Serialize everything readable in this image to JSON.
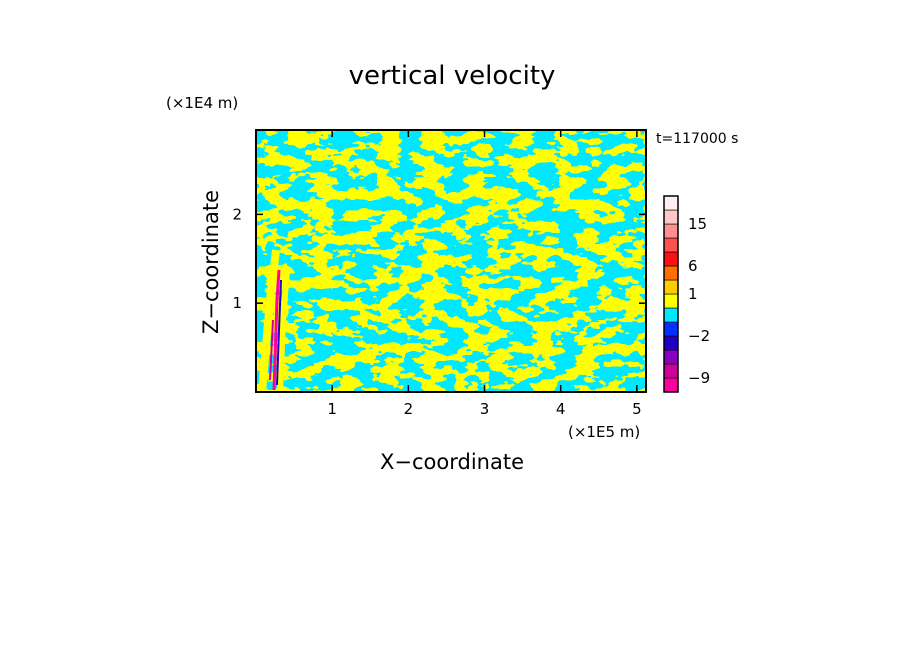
{
  "chart_data": {
    "type": "heatmap",
    "title": "vertical velocity",
    "xlabel": "X−coordinate",
    "ylabel": "Z−coordinate",
    "x_unit": "(×1E5 m)",
    "y_unit": "(×1E4 m)",
    "time_label": "t=117000 s",
    "xlim": [
      0,
      5.12
    ],
    "ylim": [
      0,
      2.95
    ],
    "x_ticks": [
      {
        "value": 1,
        "label": "1"
      },
      {
        "value": 2,
        "label": "2"
      },
      {
        "value": 3,
        "label": "3"
      },
      {
        "value": 4,
        "label": "4"
      },
      {
        "value": 5,
        "label": "5"
      }
    ],
    "y_ticks": [
      {
        "value": 1,
        "label": "1"
      },
      {
        "value": 2,
        "label": "2"
      }
    ],
    "colorbar": {
      "levels": [
        {
          "from": -12,
          "to": -9,
          "color": "#ff00a0"
        },
        {
          "from": -9,
          "to": -6,
          "color": "#d0009a"
        },
        {
          "from": -6,
          "to": -4,
          "color": "#8800c0"
        },
        {
          "from": -4,
          "to": -2,
          "color": "#2000c8"
        },
        {
          "from": -2,
          "to": -1,
          "color": "#0030ff"
        },
        {
          "from": -1,
          "to": 0,
          "color": "#00e8ff"
        },
        {
          "from": 0,
          "to": 1,
          "color": "#ffff00"
        },
        {
          "from": 1,
          "to": 3,
          "color": "#ffcc00"
        },
        {
          "from": 3,
          "to": 6,
          "color": "#ff7000"
        },
        {
          "from": 6,
          "to": 9,
          "color": "#ff1010"
        },
        {
          "from": 9,
          "to": 12,
          "color": "#ff5050"
        },
        {
          "from": 12,
          "to": 15,
          "color": "#ff9090"
        },
        {
          "from": 15,
          "to": 20,
          "color": "#ffc8c8"
        },
        {
          "from": 20,
          "to": 25,
          "color": "#fff0f0"
        }
      ],
      "tick_labels": [
        {
          "value": -9,
          "label": "−9"
        },
        {
          "value": -2,
          "label": "−2"
        },
        {
          "value": 1,
          "label": "1"
        },
        {
          "value": 6,
          "label": "6"
        },
        {
          "value": 15,
          "label": "15"
        }
      ]
    },
    "field_colors": {
      "updraft": "#ffff00",
      "downdraft": "#00e8ff"
    }
  }
}
